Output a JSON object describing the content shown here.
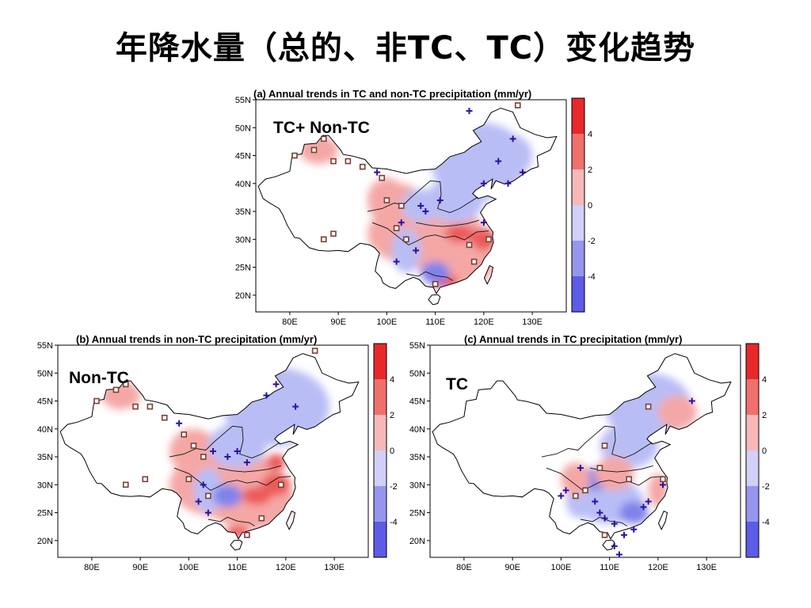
{
  "title": "年降水量（总的、非TC、TC）变化趋势",
  "lat_labels": [
    "55N",
    "50N",
    "45N",
    "40N",
    "35N",
    "30N",
    "25N",
    "20N"
  ],
  "lon_labels": [
    "80E",
    "90E",
    "100E",
    "110E",
    "120E",
    "130E"
  ],
  "colorbar": {
    "ticks": [
      "4",
      "2",
      "0",
      "-2",
      "-4"
    ],
    "colors": [
      "#e8282a",
      "#f0706c",
      "#f7b8b8",
      "#d0d0f8",
      "#9696ee",
      "#5c5ce6"
    ]
  },
  "colors": {
    "positive": "#f4a7a5",
    "positive_strong": "#ec5a58",
    "negative": "#b9bdf5",
    "negative_strong": "#7f83ea",
    "cross_marker": "#2a12a0",
    "square_marker": "#7a4035"
  },
  "panels": {
    "a": {
      "title": "(a) Annual trends in TC and non-TC precipitation (mm/yr)",
      "label": "TC+ Non-TC"
    },
    "b": {
      "title": "(b) Annual trends in non-TC precipitation (mm/yr)",
      "label": "Non-TC"
    },
    "c": {
      "title": "(c) Annual trends in TC precipitation (mm/yr)",
      "label": "TC"
    }
  }
}
